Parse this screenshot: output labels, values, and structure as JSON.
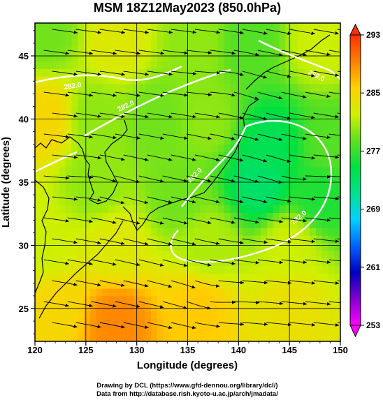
{
  "chart_data": {
    "type": "heatmap",
    "title": "MSM 18Z12May2023 (850.0hPa)",
    "xlabel": "Longitude (degrees)",
    "ylabel": "Latitude  (degrees)",
    "xlim": [
      120,
      150
    ],
    "ylim": [
      22.4,
      47.6
    ],
    "xticks": [
      120,
      125,
      130,
      135,
      140,
      145,
      150
    ],
    "yticks": [
      25,
      30,
      35,
      40,
      45
    ],
    "colorbar": {
      "min": 253,
      "max": 293,
      "ticks": [
        253,
        261,
        269,
        277,
        285,
        293
      ],
      "stops": [
        "#ff00ff",
        "#8000d0",
        "#0000c0",
        "#0060ff",
        "#00d0ff",
        "#00e090",
        "#00e040",
        "#60e020",
        "#d0f000",
        "#ffd000",
        "#ff8000",
        "#ff3000"
      ]
    },
    "contour_labels": [
      "282.0",
      "282.0",
      "282.0",
      "282.0",
      "282.0"
    ],
    "field_samples": [
      {
        "lon": 121,
        "lat": 47,
        "value": 279
      },
      {
        "lon": 128,
        "lat": 46,
        "value": 283
      },
      {
        "lon": 136,
        "lat": 46,
        "value": 280
      },
      {
        "lon": 141,
        "lat": 46,
        "value": 278
      },
      {
        "lon": 148,
        "lat": 46,
        "value": 282
      },
      {
        "lon": 121,
        "lat": 40,
        "value": 285
      },
      {
        "lon": 126,
        "lat": 40,
        "value": 280
      },
      {
        "lon": 132,
        "lat": 40,
        "value": 279
      },
      {
        "lon": 137,
        "lat": 40,
        "value": 280
      },
      {
        "lon": 143,
        "lat": 38,
        "value": 274
      },
      {
        "lon": 149,
        "lat": 38,
        "value": 278
      },
      {
        "lon": 126,
        "lat": 35,
        "value": 280
      },
      {
        "lon": 134,
        "lat": 34,
        "value": 279
      },
      {
        "lon": 142,
        "lat": 35,
        "value": 273
      },
      {
        "lon": 148,
        "lat": 34,
        "value": 276
      },
      {
        "lon": 121,
        "lat": 30,
        "value": 282
      },
      {
        "lon": 128,
        "lat": 30,
        "value": 283
      },
      {
        "lon": 137,
        "lat": 30,
        "value": 281
      },
      {
        "lon": 145,
        "lat": 30,
        "value": 282
      },
      {
        "lon": 122,
        "lat": 25,
        "value": 285
      },
      {
        "lon": 128,
        "lat": 24,
        "value": 289
      },
      {
        "lon": 136,
        "lat": 25,
        "value": 286
      },
      {
        "lon": 145,
        "lat": 25,
        "value": 284
      }
    ]
  },
  "credits": {
    "line1": "Drawing by DCL (https://www.gfd-dennou.org/library/dcl/)",
    "line2": "Data from http://database.rish.kyoto-u.ac.jp/arch/jmadata/"
  }
}
